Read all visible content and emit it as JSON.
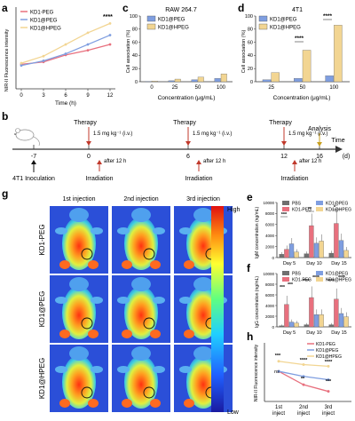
{
  "panel_labels": {
    "a": "a",
    "b": "b",
    "c": "c",
    "d": "d",
    "e": "e",
    "f": "f",
    "g": "g",
    "h": "h"
  },
  "colors": {
    "peg": "#e8707e",
    "hpeg": "#f2d592",
    "fpeg": "#7f9ee0",
    "pbs": "#707070"
  },
  "legend_abc": {
    "kd1_peg": "KD1-PEG",
    "kd1_at_peg": "KD1@PEG",
    "kd1_at_hpeg": "KD1@HPEG"
  },
  "legend_e": {
    "pbs": "PBS",
    "kd1_peg": "KD1-PEG",
    "kd1_at_peg": "KD1@PEG",
    "kd1_at_hpeg": "KD1@HPEG"
  },
  "timeline": {
    "inoculation_day": "-7",
    "inoculation_label": "4T1 Inoculation",
    "days": [
      "0",
      "6",
      "12",
      "16"
    ],
    "therapy": "Therapy",
    "dose": "1.5 mg kg⁻¹ (i.v.)",
    "after": "after 12 h",
    "irradiation": "Irradiation",
    "analysis": "Analysis",
    "time": "Time",
    "unit": "(d)"
  },
  "imaging": {
    "columns": [
      "1st injection",
      "2nd injection",
      "3rd injection"
    ],
    "rows": [
      "KD1-PEG",
      "KD1@PEG",
      "KD1@HPEG"
    ],
    "scale_high": "High",
    "scale_low": "Low"
  },
  "chart_data": [
    {
      "panel": "a",
      "type": "line",
      "xlabel": "Time (h)",
      "ylabel": "NIR-II Fluorescence intensity",
      "x": [
        0,
        3,
        6,
        9,
        12
      ],
      "xticks": [
        "0",
        "3",
        "6",
        "9",
        "12"
      ],
      "xlim": [
        0,
        12
      ],
      "ylim": [
        0,
        35
      ],
      "series": [
        {
          "name": "KD1-PEG",
          "color": "#e8707e",
          "values": [
            10.5,
            11.5,
            14.5,
            16.5,
            19
          ]
        },
        {
          "name": "KD1@PEG",
          "color": "#7f9ee0",
          "values": [
            10,
            12,
            15,
            19,
            23
          ]
        },
        {
          "name": "KD1@HPEG",
          "color": "#f2d592",
          "values": [
            11,
            14,
            19,
            24,
            28
          ]
        }
      ],
      "annotation": "****"
    },
    {
      "panel": "c",
      "type": "bar",
      "title": "RAW 264.7",
      "xlabel": "Concentration (μg/mL)",
      "ylabel": "Cell association (%)",
      "categories": [
        "0",
        "25",
        "50",
        "100"
      ],
      "ylim": [
        0,
        100
      ],
      "yticks": [
        "0",
        "20",
        "40",
        "60",
        "80",
        "100"
      ],
      "series": [
        {
          "name": "KD1@PEG",
          "color": "#7f9ee0",
          "values": [
            0.5,
            1.5,
            3,
            5
          ]
        },
        {
          "name": "KD1@HPEG",
          "color": "#f2d592",
          "values": [
            1,
            4,
            7,
            12
          ]
        }
      ]
    },
    {
      "panel": "d",
      "type": "bar",
      "title": "4T1",
      "xlabel": "Concentration (μg/mL)",
      "ylabel": "Cell association (%)",
      "categories": [
        "25",
        "50",
        "100"
      ],
      "ylim": [
        0,
        100
      ],
      "yticks": [
        "0",
        "20",
        "40",
        "60",
        "80",
        "100"
      ],
      "series": [
        {
          "name": "KD1@PEG",
          "color": "#7f9ee0",
          "values": [
            3,
            5,
            9
          ]
        },
        {
          "name": "KD1@HPEG",
          "color": "#f2d592",
          "values": [
            14,
            48,
            86
          ]
        }
      ],
      "annotations": [
        "****",
        "****"
      ]
    },
    {
      "panel": "e",
      "type": "bar",
      "ylabel": "IgM concentration (ng/mL)",
      "categories": [
        "Day 5",
        "Day 10",
        "Day 15"
      ],
      "ylim": [
        0,
        10000
      ],
      "yticks": [
        "0",
        "2000",
        "4000",
        "6000",
        "8000",
        "10000"
      ],
      "series": [
        {
          "name": "PBS",
          "color": "#707070",
          "values": [
            600,
            700,
            800
          ]
        },
        {
          "name": "KD1-PEG",
          "color": "#e8707e",
          "values": [
            1500,
            5800,
            6200
          ]
        },
        {
          "name": "KD1@PEG",
          "color": "#7f9ee0",
          "values": [
            2500,
            2600,
            3100
          ]
        },
        {
          "name": "KD1@HPEG",
          "color": "#f2d592",
          "values": [
            1000,
            3000,
            1300
          ]
        }
      ],
      "annotations": [
        "***",
        "**",
        "*"
      ]
    },
    {
      "panel": "f",
      "type": "bar",
      "ylabel": "IgG concentration (ng/mL)",
      "categories": [
        "Day 5",
        "Day 10",
        "Day 15"
      ],
      "ylim": [
        0,
        10000
      ],
      "yticks": [
        "0",
        "2000",
        "4000",
        "6000",
        "8000",
        "10000"
      ],
      "series": [
        {
          "name": "PBS",
          "color": "#707070",
          "values": [
            200,
            400,
            400
          ]
        },
        {
          "name": "KD1-PEG",
          "color": "#e8707e",
          "values": [
            4200,
            5500,
            5200
          ]
        },
        {
          "name": "KD1@PEG",
          "color": "#7f9ee0",
          "values": [
            900,
            2300,
            2500
          ]
        },
        {
          "name": "KD1@HPEG",
          "color": "#f2d592",
          "values": [
            700,
            2300,
            1900
          ]
        }
      ],
      "annotations": [
        "***",
        "***",
        "****",
        "****",
        "****",
        "****"
      ]
    },
    {
      "panel": "h",
      "type": "line",
      "ylabel": "NIR-II Fluorescence intensity",
      "categories": [
        "1st inject",
        "2nd inject",
        "3rd inject"
      ],
      "ylim": [
        0,
        35
      ],
      "series": [
        {
          "name": "KD1-PEG",
          "color": "#e8707e",
          "values": [
            18,
            10,
            6
          ]
        },
        {
          "name": "KD1@PEG",
          "color": "#7f9ee0",
          "values": [
            18,
            15,
            13
          ]
        },
        {
          "name": "KD1@HPEG",
          "color": "#f2d592",
          "values": [
            24,
            22,
            21
          ]
        }
      ],
      "annotations": [
        "***",
        "****",
        "****",
        "ns",
        "**",
        "***"
      ]
    }
  ]
}
